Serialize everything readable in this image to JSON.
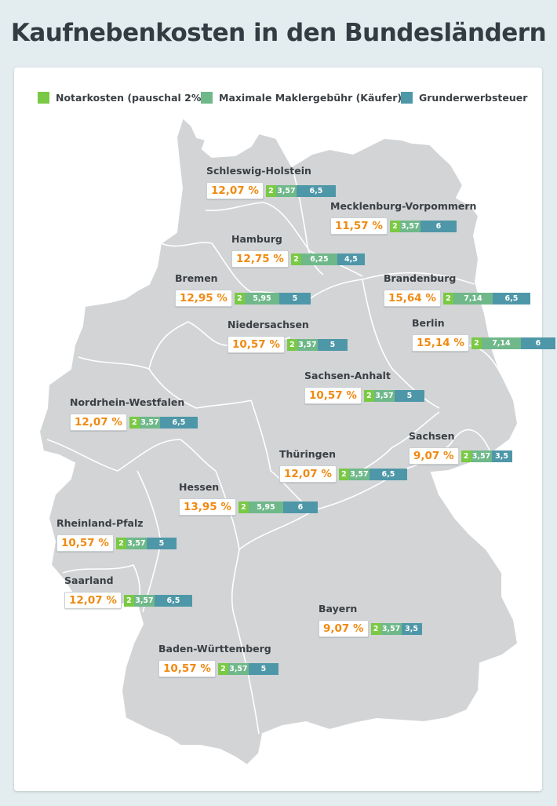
{
  "title": "Kaufnebenkosten in den Bundesländern",
  "colors": {
    "notar": "#7ac944",
    "makler": "#6fb88a",
    "grunderwerb": "#4e97a8",
    "percent": "#f08a12",
    "map": "#d2d4d6"
  },
  "legend": {
    "notar": "Notarkosten (pauschal 2%)",
    "makler": "Maximale Maklergebühr (Käufer)",
    "grunderwerb": "Grunderwerbsteuer"
  },
  "states": [
    {
      "name": "Schleswig-Holstein",
      "total": "12,07 %",
      "notar": "2",
      "makler": "3,57",
      "grunderwerb": "6,5"
    },
    {
      "name": "Mecklenburg-Vorpommern",
      "total": "11,57 %",
      "notar": "2",
      "makler": "3,57",
      "grunderwerb": "6"
    },
    {
      "name": "Hamburg",
      "total": "12,75 %",
      "notar": "2",
      "makler": "6,25",
      "grunderwerb": "4,5"
    },
    {
      "name": "Bremen",
      "total": "12,95 %",
      "notar": "2",
      "makler": "5,95",
      "grunderwerb": "5"
    },
    {
      "name": "Brandenburg",
      "total": "15,64 %",
      "notar": "2",
      "makler": "7,14",
      "grunderwerb": "6,5"
    },
    {
      "name": "Berlin",
      "total": "15,14 %",
      "notar": "2",
      "makler": "7,14",
      "grunderwerb": "6"
    },
    {
      "name": "Niedersachsen",
      "total": "10,57 %",
      "notar": "2",
      "makler": "3,57",
      "grunderwerb": "5"
    },
    {
      "name": "Sachsen-Anhalt",
      "total": "10,57 %",
      "notar": "2",
      "makler": "3,57",
      "grunderwerb": "5"
    },
    {
      "name": "Nordrhein-Westfalen",
      "total": "12,07 %",
      "notar": "2",
      "makler": "3,57",
      "grunderwerb": "6,5"
    },
    {
      "name": "Sachsen",
      "total": "9,07 %",
      "notar": "2",
      "makler": "3,57",
      "grunderwerb": "3,5"
    },
    {
      "name": "Thüringen",
      "total": "12,07 %",
      "notar": "2",
      "makler": "3,57",
      "grunderwerb": "6,5"
    },
    {
      "name": "Hessen",
      "total": "13,95 %",
      "notar": "2",
      "makler": "5,95",
      "grunderwerb": "6"
    },
    {
      "name": "Rheinland-Pfalz",
      "total": "10,57 %",
      "notar": "2",
      "makler": "3,57",
      "grunderwerb": "5"
    },
    {
      "name": "Saarland",
      "total": "12,07 %",
      "notar": "2",
      "makler": "3,57",
      "grunderwerb": "6,5"
    },
    {
      "name": "Bayern",
      "total": "9,07 %",
      "notar": "2",
      "makler": "3,57",
      "grunderwerb": "3,5"
    },
    {
      "name": "Baden-Württemberg",
      "total": "10,57 %",
      "notar": "2",
      "makler": "3,57",
      "grunderwerb": "5"
    }
  ]
}
